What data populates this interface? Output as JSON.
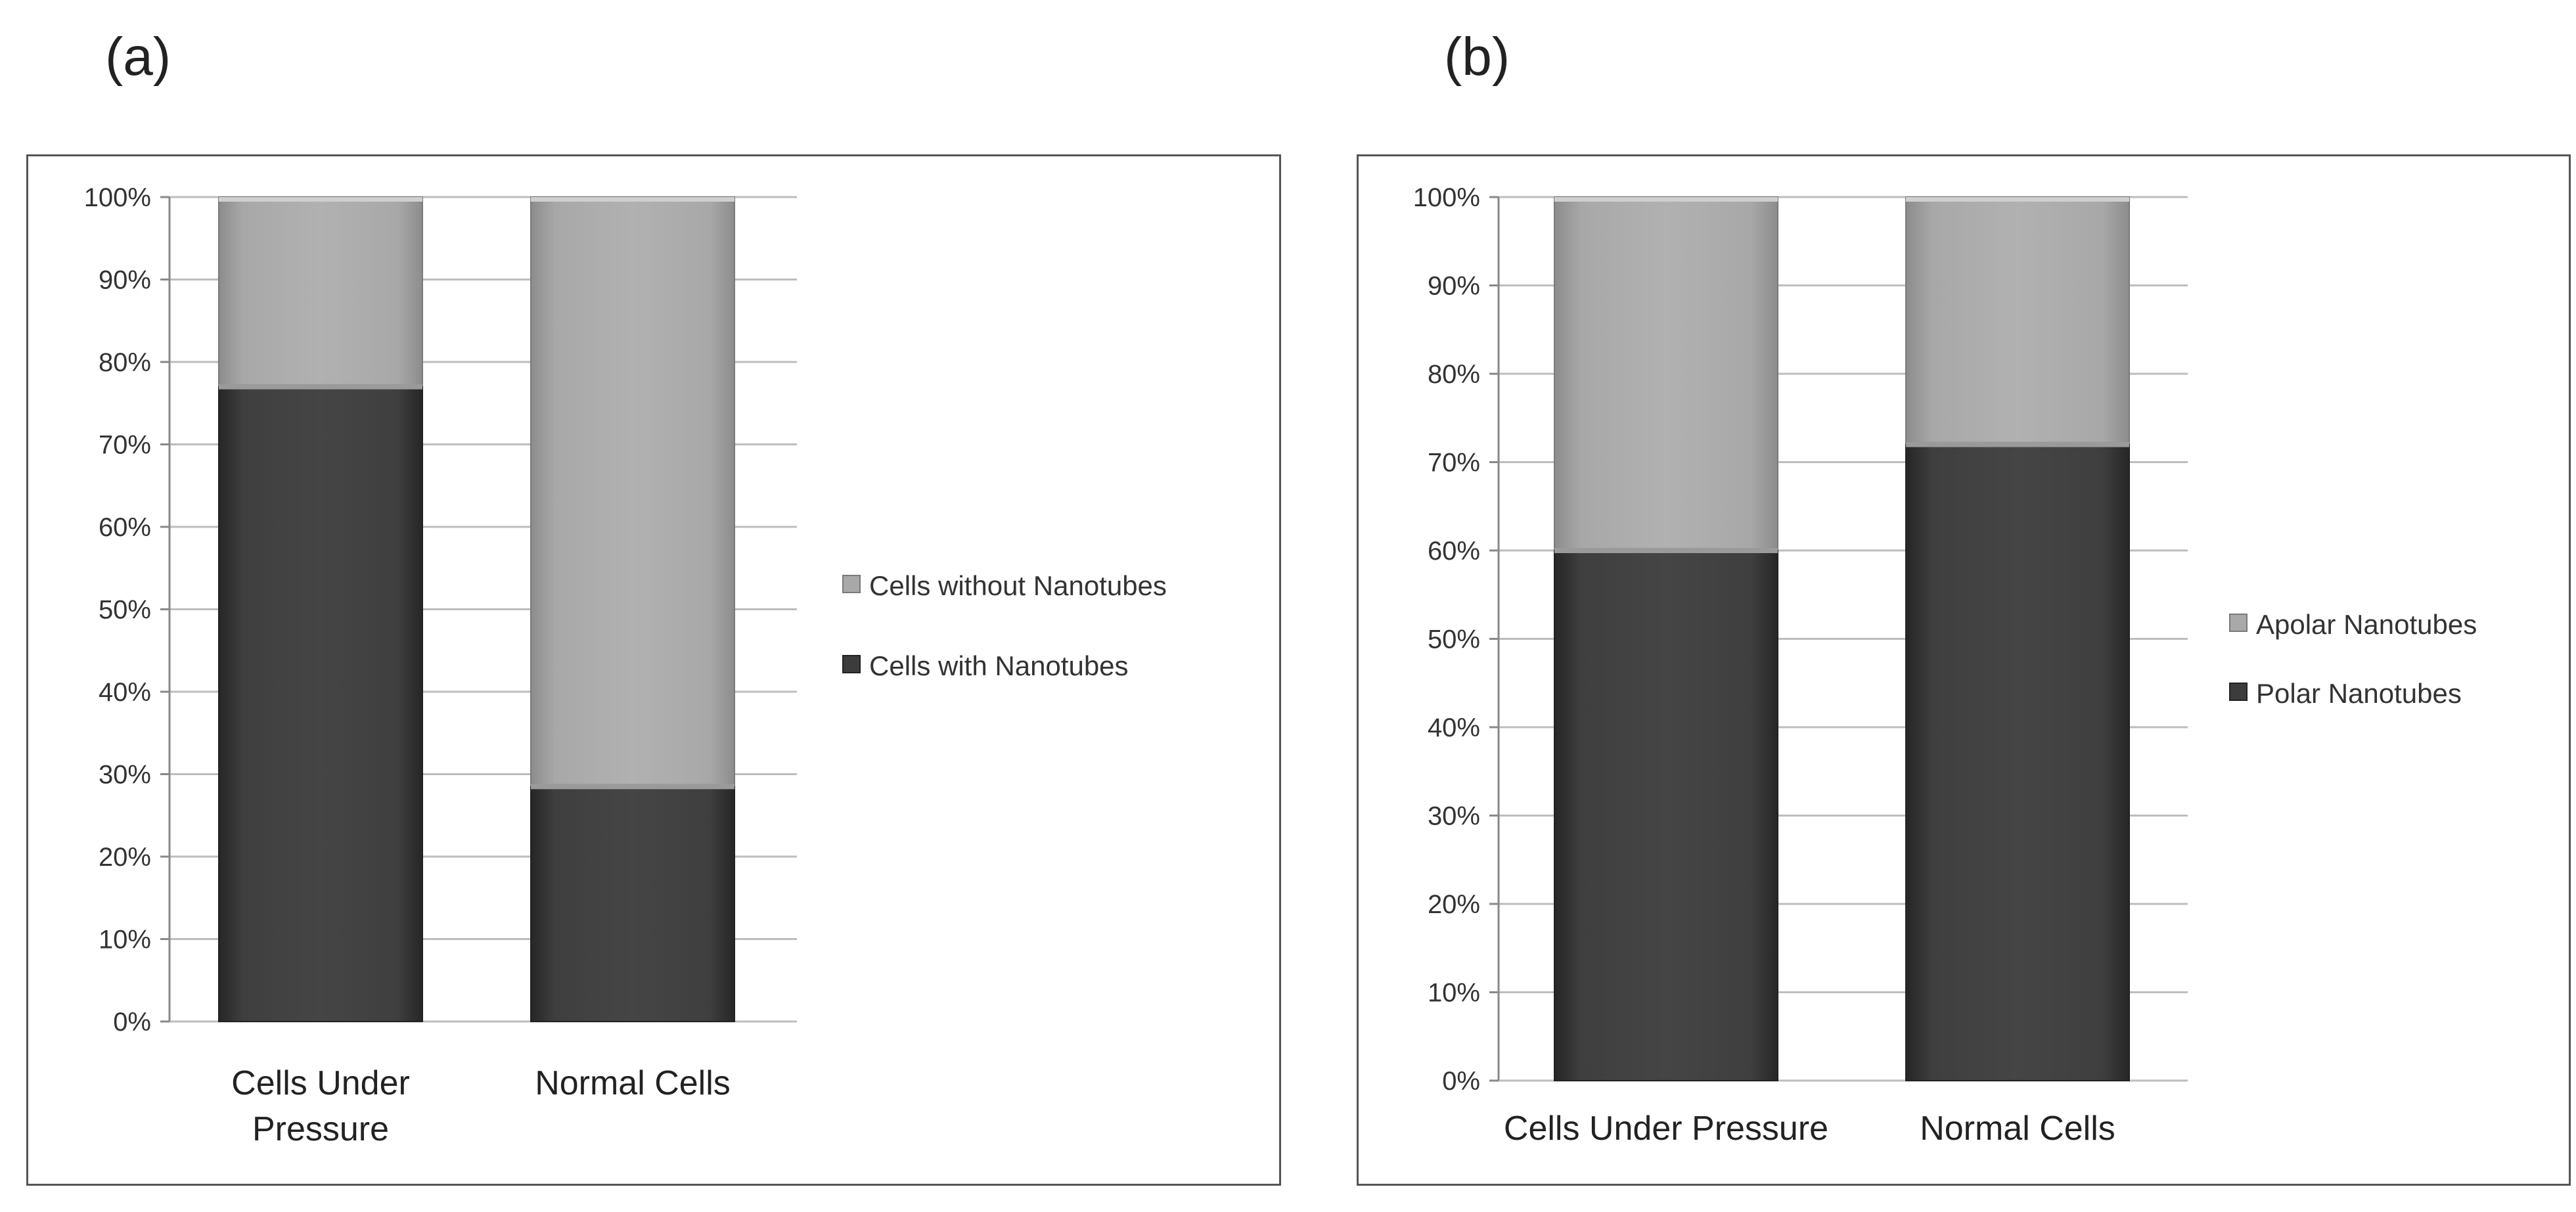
{
  "panels": [
    {
      "id": "a",
      "label": "(a)"
    },
    {
      "id": "b",
      "label": "(b)"
    }
  ],
  "colors": {
    "dark_series": "#3c3c3c",
    "light_series": "#a9a9a9",
    "grid": "#bdbdbd",
    "frame": "#555555"
  },
  "chart_data": [
    {
      "type": "bar",
      "stacked": true,
      "percent": true,
      "categories": [
        [
          "Cells Under",
          "Pressure"
        ],
        [
          "Normal Cells"
        ]
      ],
      "series": [
        {
          "name": "Cells with Nanotubes",
          "values": [
            77,
            28.5
          ]
        },
        {
          "name": "Cells without Nanotubes",
          "values": [
            23,
            71.5
          ]
        }
      ],
      "yticks": [
        "0%",
        "10%",
        "20%",
        "30%",
        "40%",
        "50%",
        "60%",
        "70%",
        "80%",
        "90%",
        "100%"
      ],
      "ylim": [
        0,
        100
      ],
      "grid": true,
      "legend": {
        "placement": "right",
        "entries": [
          "Cells without Nanotubes",
          "Cells with Nanotubes"
        ]
      }
    },
    {
      "type": "bar",
      "stacked": true,
      "percent": true,
      "categories": [
        [
          "Cells Under Pressure"
        ],
        [
          "Normal Cells"
        ]
      ],
      "series": [
        {
          "name": "Polar Nanotubes",
          "values": [
            60,
            72
          ]
        },
        {
          "name": "Apolar Nanotubes",
          "values": [
            40,
            28
          ]
        }
      ],
      "yticks": [
        "0%",
        "10%",
        "20%",
        "30%",
        "40%",
        "50%",
        "60%",
        "70%",
        "80%",
        "90%",
        "100%"
      ],
      "ylim": [
        0,
        100
      ],
      "grid": true,
      "legend": {
        "placement": "right",
        "entries": [
          "Apolar Nanotubes",
          "Polar Nanotubes"
        ]
      }
    }
  ]
}
